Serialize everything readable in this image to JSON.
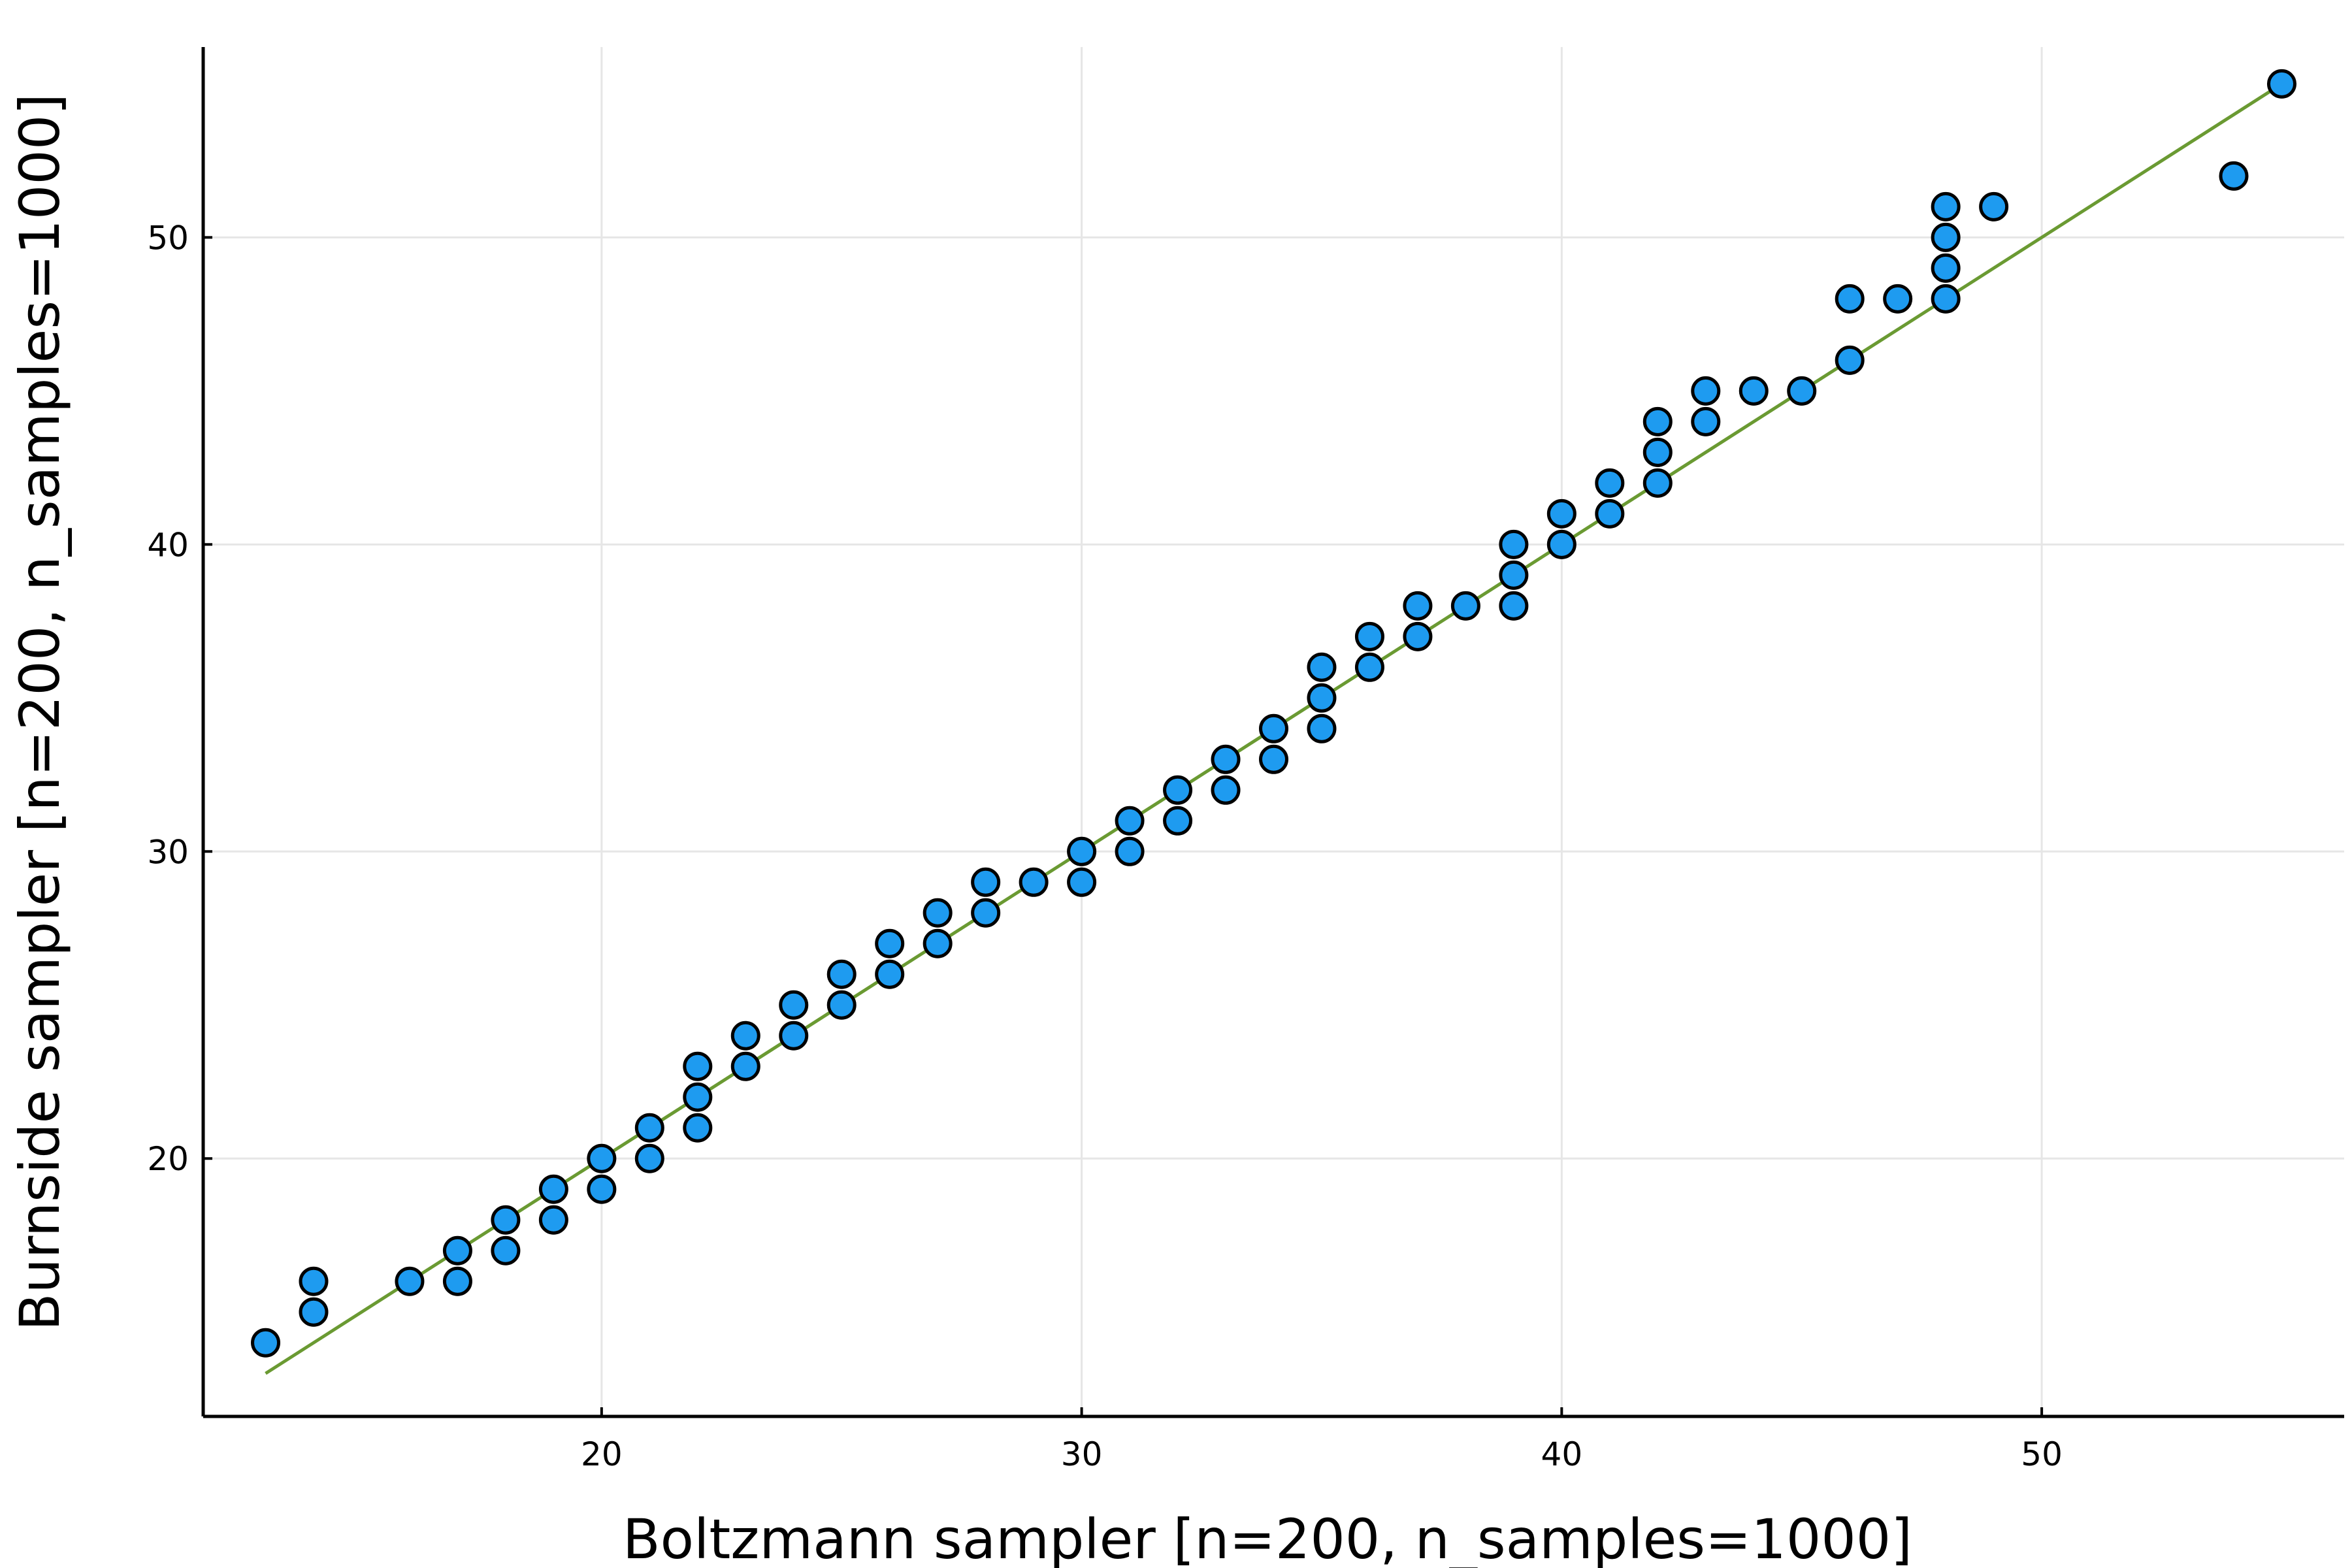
{
  "chart_data": {
    "type": "scatter",
    "title": "",
    "xlabel": "Boltzmann sampler [n=200, n_samples=1000]",
    "ylabel": "Burnside sampler [n=200, n_samples=1000]",
    "xlim": [
      11.7,
      56.3
    ],
    "ylim": [
      11.6,
      56.2
    ],
    "xticks": [
      20,
      30,
      40,
      50
    ],
    "yticks": [
      20,
      30,
      40,
      50
    ],
    "grid": true,
    "legend": "none",
    "colors": {
      "points": "#1e9bf0",
      "point_edge": "#000000",
      "line": "#6a9a32",
      "grid": "#e6e6e6",
      "axis": "#000000"
    },
    "series": [
      {
        "type": "scatter",
        "x": [
          13,
          14,
          14,
          16,
          17,
          17,
          18,
          18,
          19,
          19,
          20,
          20,
          21,
          21,
          22,
          22,
          22,
          23,
          23,
          24,
          24,
          25,
          25,
          26,
          26,
          27,
          27,
          28,
          28,
          29,
          30,
          30,
          31,
          31,
          32,
          32,
          33,
          33,
          34,
          34,
          35,
          35,
          35,
          36,
          36,
          37,
          37,
          38,
          39,
          39,
          39,
          40,
          40,
          41,
          41,
          42,
          42,
          42,
          43,
          43,
          44,
          45,
          46,
          46,
          47,
          48,
          48,
          48,
          48,
          49,
          54,
          55
        ],
        "y": [
          14,
          15,
          16,
          16,
          16,
          17,
          17,
          18,
          18,
          19,
          19,
          20,
          20,
          21,
          21,
          22,
          23,
          23,
          24,
          24,
          25,
          25,
          26,
          26,
          27,
          27,
          28,
          28,
          29,
          29,
          29,
          30,
          30,
          31,
          31,
          32,
          32,
          33,
          33,
          34,
          34,
          35,
          36,
          36,
          37,
          37,
          38,
          38,
          38,
          39,
          40,
          40,
          41,
          41,
          42,
          42,
          43,
          44,
          44,
          45,
          45,
          45,
          46,
          48,
          48,
          48,
          49,
          50,
          51,
          51,
          52,
          55
        ]
      },
      {
        "type": "line",
        "x": [
          13,
          55
        ],
        "y": [
          13,
          55
        ]
      }
    ]
  }
}
